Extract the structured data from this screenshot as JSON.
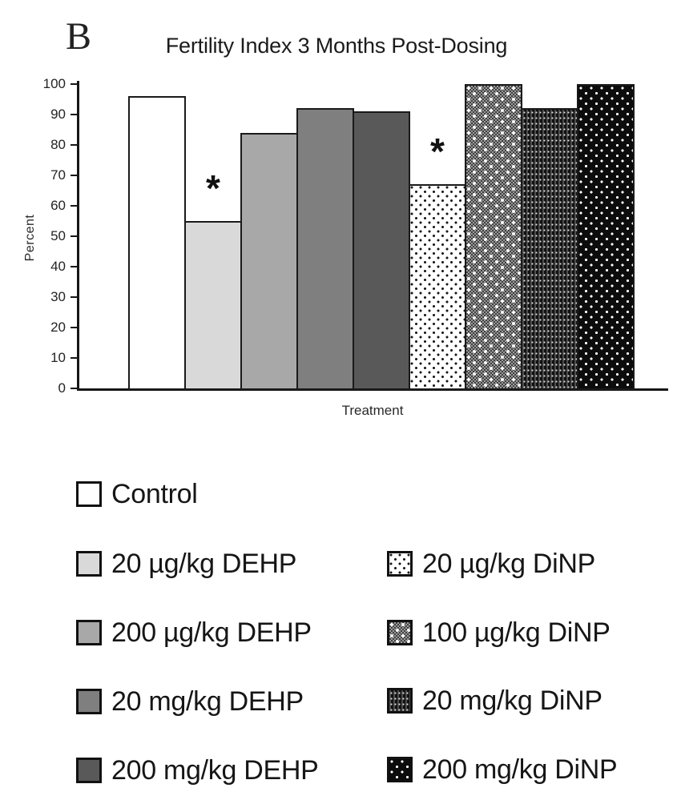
{
  "panel_label": "B",
  "chart_data": {
    "type": "bar",
    "title": "Fertility Index 3 Months Post-Dosing",
    "xlabel": "Treatment",
    "ylabel": "Percent",
    "ylim": [
      0,
      100
    ],
    "yticks": [
      0,
      10,
      20,
      30,
      40,
      50,
      60,
      70,
      80,
      90,
      100
    ],
    "grid": false,
    "legend_position": "below-chart-two-columns",
    "significance_marker": "*",
    "categories": [
      "Control",
      "20 µg/kg DEHP",
      "200 µg/kg DEHP",
      "20 mg/kg DEHP",
      "200 mg/kg DEHP",
      "20 µg/kg DiNP",
      "100 µg/kg DiNP",
      "20 mg/kg DiNP",
      "200 mg/kg DiNP"
    ],
    "values": [
      96,
      55,
      84,
      92,
      91,
      67,
      100,
      92,
      100
    ],
    "significant": [
      false,
      true,
      false,
      false,
      false,
      true,
      false,
      false,
      false
    ],
    "patterns": [
      "solid-white",
      "solid-light-gray",
      "solid-medium-gray",
      "solid-gray",
      "solid-dark-gray",
      "white-black-dots",
      "gray-checker-white-dots",
      "dark-fine-grid",
      "black-white-dots"
    ]
  },
  "legend": {
    "column1": [
      {
        "label": "Control",
        "pattern": "solid-white"
      },
      {
        "label": "20 µg/kg DEHP",
        "pattern": "solid-light-gray"
      },
      {
        "label": "200 µg/kg DEHP",
        "pattern": "solid-medium-gray"
      },
      {
        "label": "20 mg/kg DEHP",
        "pattern": "solid-gray"
      },
      {
        "label": "200 mg/kg DEHP",
        "pattern": "solid-dark-gray"
      }
    ],
    "column2": [
      {
        "label": "20 µg/kg DiNP",
        "pattern": "white-black-dots"
      },
      {
        "label": "100 µg/kg DiNP",
        "pattern": "gray-checker-white-dots"
      },
      {
        "label": "20 mg/kg DiNP",
        "pattern": "dark-fine-grid"
      },
      {
        "label": "200 mg/kg DiNP",
        "pattern": "black-white-dots"
      }
    ]
  },
  "colors": {
    "axis": "#161616",
    "bar_border": "#1a1a1a",
    "text": "#1c1c1c",
    "light_gray": "#d9d9d9",
    "medium_gray": "#a8a8a8",
    "gray": "#7f7f7f",
    "dark_gray": "#595959",
    "black": "#0c0c0c",
    "white": "#ffffff"
  }
}
